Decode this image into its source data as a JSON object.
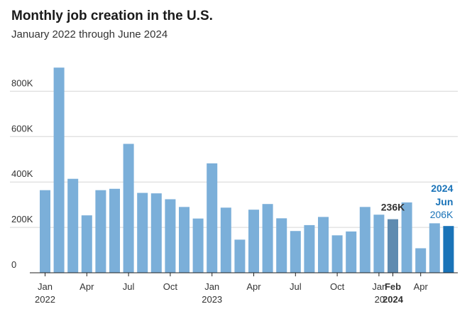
{
  "header": {
    "title": "Monthly job creation in the U.S.",
    "subtitle": "January 2022 through June 2024"
  },
  "colors": {
    "bar": "#7bafd9",
    "highlight_feb": "#5f8bb0",
    "highlight_jun": "#1a73b8",
    "grid": "#d6d6d6",
    "text": "#333333"
  },
  "chart_data": {
    "type": "bar",
    "categories": [
      "Jan 2022",
      "Feb 2022",
      "Mar 2022",
      "Apr 2022",
      "May 2022",
      "Jun 2022",
      "Jul 2022",
      "Aug 2022",
      "Sep 2022",
      "Oct 2022",
      "Nov 2022",
      "Dec 2022",
      "Jan 2023",
      "Feb 2023",
      "Mar 2023",
      "Apr 2023",
      "May 2023",
      "Jun 2023",
      "Jul 2023",
      "Aug 2023",
      "Sep 2023",
      "Oct 2023",
      "Nov 2023",
      "Dec 2023",
      "Jan 2024",
      "Feb 2024",
      "Mar 2024",
      "Apr 2024",
      "May 2024",
      "Jun 2024"
    ],
    "values": [
      364,
      904,
      414,
      253,
      364,
      370,
      568,
      352,
      350,
      324,
      290,
      239,
      482,
      287,
      146,
      278,
      303,
      240,
      184,
      210,
      246,
      165,
      182,
      290,
      256,
      236,
      310,
      108,
      218,
      206
    ],
    "ylim": [
      0,
      900
    ],
    "y_ticks": [
      {
        "value": 0,
        "label": "0"
      },
      {
        "value": 200,
        "label": "200K"
      },
      {
        "value": 400,
        "label": "400K"
      },
      {
        "value": 600,
        "label": "600K"
      },
      {
        "value": 800,
        "label": "800K"
      }
    ],
    "x_ticks": [
      {
        "index": 0,
        "line1": "Jan",
        "line2": "2022",
        "bold": false
      },
      {
        "index": 3,
        "line1": "Apr",
        "line2": "",
        "bold": false
      },
      {
        "index": 6,
        "line1": "Jul",
        "line2": "",
        "bold": false
      },
      {
        "index": 9,
        "line1": "Oct",
        "line2": "",
        "bold": false
      },
      {
        "index": 12,
        "line1": "Jan",
        "line2": "2023",
        "bold": false
      },
      {
        "index": 15,
        "line1": "Apr",
        "line2": "",
        "bold": false
      },
      {
        "index": 18,
        "line1": "Jul",
        "line2": "",
        "bold": false
      },
      {
        "index": 21,
        "line1": "Oct",
        "line2": "",
        "bold": false
      },
      {
        "index": 24,
        "line1": "Jan",
        "line2": "20",
        "bold": false
      },
      {
        "index": 25,
        "line1": "Feb",
        "line2": "2024",
        "bold": true
      },
      {
        "index": 27,
        "line1": "Apr",
        "line2": "",
        "bold": false
      }
    ],
    "highlight": {
      "feb": {
        "index": 25,
        "label": "236K"
      },
      "jun": {
        "index": 29,
        "year": "2024",
        "month": "Jun",
        "label": "206K"
      }
    },
    "grid": true
  }
}
